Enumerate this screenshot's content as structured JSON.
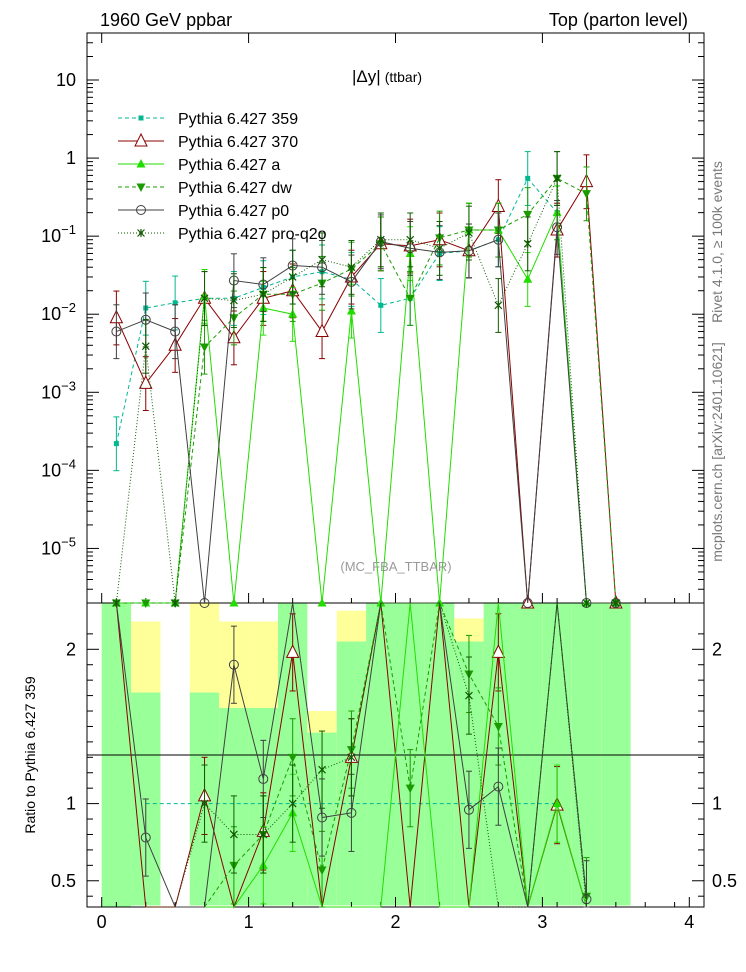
{
  "header": {
    "left": "1960 GeV ppbar",
    "right": "Top (parton level)"
  },
  "side_labels": {
    "rivet": "Rivet 4.1.0, ≥ 100k events",
    "mcplots": "mcplots.cern.ch [arXiv:2401.10621]"
  },
  "chart_data": {
    "type": "line",
    "title": "|Δy| (ttbar)",
    "title_main": "|Δy|",
    "title_sub": "(ttbar)",
    "watermark": "(MC_FBA_TTBAR)",
    "ylabel_ratio": "Ratio to Pythia 6.427 359",
    "x_ticks": [
      "0",
      "1",
      "2",
      "3",
      "4"
    ],
    "xlim": [
      -0.1,
      4.1
    ],
    "ylim": [
      2e-06,
      40
    ],
    "ratio_ylim": [
      0.33,
      2.3
    ],
    "y_ticks_main": [
      {
        "v": 10,
        "label": "10"
      },
      {
        "v": 1,
        "label": "1"
      },
      {
        "v": 0.1,
        "label": "10−1"
      },
      {
        "v": 0.01,
        "label": "10−2"
      },
      {
        "v": 0.001,
        "label": "10−3"
      },
      {
        "v": 0.0001,
        "label": "10−4"
      },
      {
        "v": 1e-05,
        "label": "10−5"
      }
    ],
    "y_ticks_ratio": [
      {
        "v": 2,
        "label": "2"
      },
      {
        "v": 1,
        "label": "1"
      },
      {
        "v": 0.5,
        "label": "0.5"
      }
    ],
    "x": [
      0.1,
      0.3,
      0.5,
      0.7,
      0.9,
      1.1,
      1.3,
      1.5,
      1.7,
      1.9,
      2.1,
      2.3,
      2.5,
      2.7,
      2.9,
      3.1,
      3.3,
      3.5
    ],
    "band": {
      "green": [
        [
          0,
          2.5
        ],
        [
          0.34,
          1.72
        ],
        [
          1.72,
          1.72
        ],
        [
          0.34,
          1.72
        ],
        [
          0.34,
          1.62
        ],
        [
          0.34,
          1.62
        ],
        [
          0.34,
          2.5
        ],
        [
          0.34,
          1.46
        ],
        [
          0.34,
          2.05
        ],
        [
          0.34,
          2.5
        ],
        [
          0.34,
          2.5
        ],
        [
          0.34,
          2.5
        ],
        [
          0.34,
          2.05
        ],
        [
          0.34,
          2.5
        ],
        [
          0.34,
          2.5
        ],
        [
          0.34,
          2.5
        ],
        [
          0.34,
          2.5
        ],
        [
          0.34,
          2.5
        ]
      ],
      "yellow": [
        [
          0,
          2.5
        ],
        [
          0.34,
          2.18
        ],
        [
          2.5,
          2.5
        ],
        [
          0.34,
          2.3
        ],
        [
          0.34,
          2.18
        ],
        [
          0.34,
          2.18
        ],
        [
          0.34,
          2.5
        ],
        [
          0.34,
          1.6
        ],
        [
          0.34,
          2.25
        ],
        [
          0.34,
          2.5
        ],
        [
          0.34,
          2.5
        ],
        [
          0.34,
          2.5
        ],
        [
          0.34,
          2.2
        ],
        [
          0.34,
          2.5
        ],
        [
          0.34,
          1.7
        ],
        [
          0.34,
          2.5
        ],
        [
          0.34,
          2.5
        ],
        [
          0.34,
          2.5
        ]
      ]
    },
    "series": [
      {
        "name": "Pythia 6.427 359",
        "color": "#00b890",
        "dash": "4,3",
        "marker": "square",
        "values": [
          0.00022,
          0.012,
          0.014,
          0.016,
          0.016,
          0.022,
          0.03,
          0.035,
          0.028,
          0.013,
          0.016,
          0.06,
          0.065,
          0.09,
          0.55,
          0.2,
          0.0,
          0.0
        ],
        "ratio": [
          null,
          1.0,
          1.0,
          1.0,
          1.0,
          1.0,
          1.0,
          1.0,
          1.0,
          1.0,
          1.0,
          1.0,
          1.0,
          1.0,
          1.0,
          1.0,
          null,
          null
        ]
      },
      {
        "name": "Pythia 6.427 370",
        "color": "#8b0000",
        "dash": "",
        "marker": "triangle-open",
        "values": [
          0.009,
          0.0013,
          0.004,
          0.016,
          0.005,
          0.016,
          0.02,
          0.006,
          0.03,
          0.08,
          0.075,
          0.09,
          0.065,
          0.24,
          0.0,
          0.12,
          0.5,
          0.0
        ],
        "ratio": [
          3.0,
          0.1,
          0.2,
          1.05,
          0.05,
          0.82,
          1.98,
          0.05,
          1.3,
          2.8,
          0.05,
          2.8,
          0.05,
          1.98,
          0.05,
          0.99,
          0.05,
          null
        ]
      },
      {
        "name": "Pythia 6.427 a",
        "color": "#22dd00",
        "dash": "",
        "marker": "triangle",
        "values": [
          0.0,
          0.0,
          0.0,
          0.017,
          0.0,
          0.012,
          0.01,
          0.0,
          0.011,
          0.0,
          0.06,
          0.0,
          0.12,
          0.12,
          0.028,
          0.2,
          0.0,
          0.0
        ],
        "ratio": [
          null,
          null,
          null,
          0.1,
          0.05,
          0.6,
          0.94,
          0.05,
          0.05,
          0.05,
          2.6,
          0.05,
          0.05,
          2.6,
          0.05,
          1.0,
          0.05,
          null
        ]
      },
      {
        "name": "Pythia 6.427 dw",
        "color": "#1a9c00",
        "dash": "4,3",
        "marker": "triangle-down",
        "values": [
          0.0,
          0.0,
          0.0,
          0.0038,
          0.009,
          0.018,
          0.018,
          0.025,
          0.038,
          0.08,
          0.016,
          0.095,
          0.12,
          0.12,
          0.19,
          0.55,
          0.35,
          0.0
        ],
        "ratio": [
          null,
          null,
          null,
          0.2,
          0.6,
          0.8,
          1.3,
          0.57,
          1.35,
          2.5,
          1.1,
          2.5,
          1.84,
          1.5,
          0.3,
          2.8,
          0.4,
          null
        ]
      },
      {
        "name": "Pythia 6.427 p0",
        "color": "#404040",
        "dash": "",
        "marker": "circle-open",
        "values": [
          0.006,
          0.0085,
          0.006,
          0.0,
          0.027,
          0.024,
          0.042,
          0.04,
          0.026,
          0.085,
          0.07,
          0.062,
          0.065,
          0.09,
          0.0,
          0.13,
          0.0,
          0.0
        ],
        "ratio": [
          3.0,
          0.78,
          0.2,
          0.05,
          1.9,
          1.16,
          2.6,
          0.91,
          0.94,
          2.8,
          2.8,
          2.8,
          0.96,
          1.11,
          0.05,
          2.8,
          0.38,
          null
        ]
      },
      {
        "name": "Pythia 6.427 pro-q2o",
        "color": "#105a00",
        "dash": "1,2",
        "marker": "star",
        "values": [
          0.0,
          0.0039,
          0.0,
          0.016,
          0.015,
          0.018,
          0.03,
          0.05,
          0.04,
          0.09,
          0.09,
          0.07,
          0.11,
          0.013,
          0.08,
          0.55,
          0.0,
          0.0
        ],
        "ratio": [
          null,
          0.3,
          0.05,
          1.0,
          0.8,
          0.8,
          1.0,
          1.22,
          1.3,
          2.6,
          2.6,
          2.6,
          1.7,
          0.2,
          0.3,
          2.8,
          0.05,
          null
        ]
      }
    ]
  }
}
